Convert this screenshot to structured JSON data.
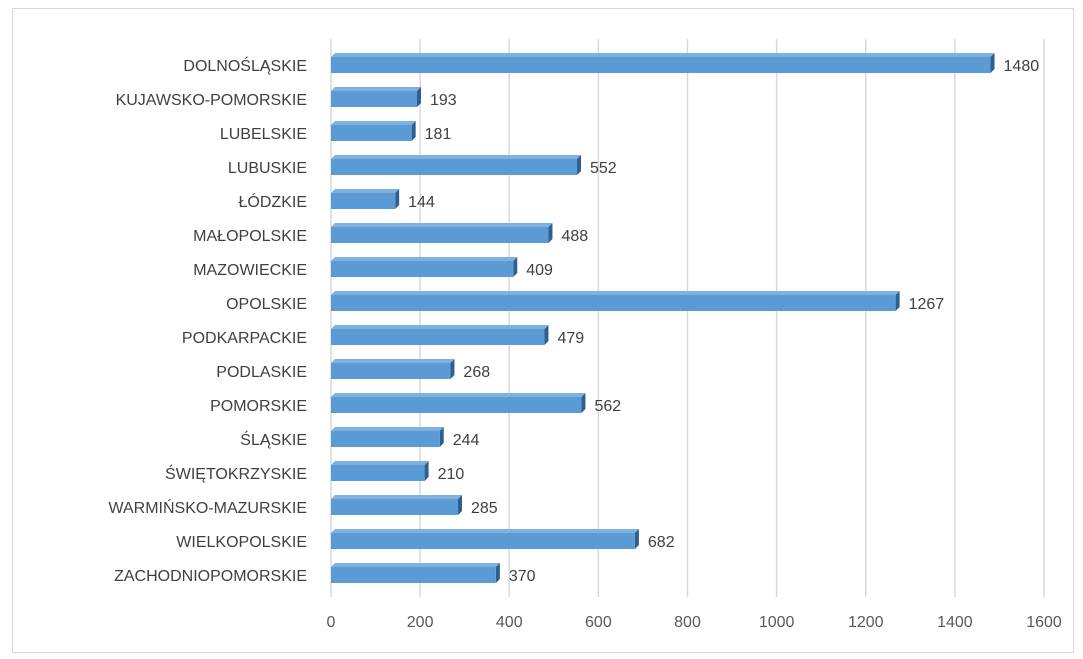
{
  "chart_data": {
    "type": "bar",
    "orientation": "horizontal",
    "title": "",
    "xlabel": "",
    "ylabel": "",
    "categories": [
      "DOLNOŚLĄSKIE",
      "KUJAWSKO-POMORSKIE",
      "LUBELSKIE",
      "LUBUSKIE",
      "ŁÓDZKIE",
      "MAŁOPOLSKIE",
      "MAZOWIECKIE",
      "OPOLSKIE",
      "PODKARPACKIE",
      "PODLASKIE",
      "POMORSKIE",
      "ŚLĄSKIE",
      "ŚWIĘTOKRZYSKIE",
      "WARMIŃSKO-MAZURSKIE",
      "WIELKOPOLSKIE",
      "ZACHODNIOPOMORSKIE"
    ],
    "values": [
      1480,
      193,
      181,
      552,
      144,
      488,
      409,
      1267,
      479,
      268,
      562,
      244,
      210,
      285,
      682,
      370
    ],
    "value_labels": [
      "1480",
      "193",
      "181",
      "552",
      "144",
      "488",
      "409",
      "1267",
      "479",
      "268",
      "562",
      "244",
      "210",
      "285",
      "682",
      "370"
    ],
    "xlim": [
      0,
      1600
    ],
    "ticks": [
      "0",
      "200",
      "400",
      "600",
      "800",
      "1000",
      "1200",
      "1400",
      "1600"
    ],
    "grid": "vertical",
    "legend": "none",
    "colors": {
      "bar": "#5b9bd5",
      "bar_edge": "#2e5f8f",
      "grid": "#d9d9d9",
      "text": "#404040"
    }
  }
}
